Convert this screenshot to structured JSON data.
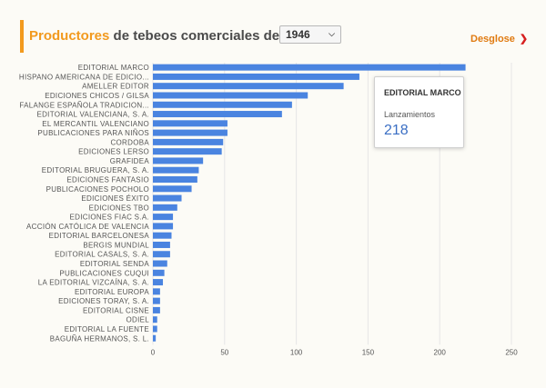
{
  "header": {
    "title_highlight": "Productores",
    "title_rest": "de tebeos comerciales del año",
    "year": "1946",
    "breakdown_label": "Desglose",
    "accent_color": "#f29a1e"
  },
  "tooltip": {
    "name": "EDITORIAL MARCO",
    "label": "Lanzamientos",
    "value": "218"
  },
  "colors": {
    "bar": "#4a84e0",
    "grid": "#e6e6e6",
    "text": "#555555"
  },
  "chart_data": {
    "type": "bar",
    "orientation": "horizontal",
    "xlim": [
      0,
      250
    ],
    "xticks": [
      0,
      50,
      100,
      150,
      200,
      250
    ],
    "grid": true,
    "categories": [
      "EDITORIAL MARCO",
      "HISPANO AMERICANA DE EDICIO...",
      "AMELLER EDITOR",
      "EDICIONES CHICOS / GILSA",
      "FALANGE ESPAÑOLA TRADICION...",
      "EDITORIAL VALENCIANA, S. A.",
      "EL MERCANTIL VALENCIANO",
      "PUBLICACIONES PARA NIÑOS",
      "CORDOBA",
      "EDICIONES LERSO",
      "GRAFIDEA",
      "EDITORIAL BRUGUERA, S. A.",
      "EDICIONES FANTASIO",
      "PUBLICACIONES POCHOLO",
      "EDICIONES ÉXITO",
      "EDICIONES TBO",
      "EDICIONES FIAC S.A.",
      "ACCIÓN CATÓLICA DE VALENCIA",
      "EDITORIAL BARCELONESA",
      "BERGIS MUNDIAL",
      "EDITORIAL CASALS, S. A.",
      "EDITORIAL SENDA",
      "PUBLICACIONES CUQUI",
      "LA EDITORIAL VIZCAÍNA, S. A.",
      "EDITORIAL EUROPA",
      "EDICIONES TORAY, S. A.",
      "EDITORIAL CISNE",
      "ODIEL",
      "EDITORIAL LA FUENTE",
      "BAGUÑA HERMANOS, S. L."
    ],
    "values": [
      218,
      144,
      133,
      108,
      97,
      90,
      52,
      52,
      49,
      48,
      35,
      32,
      31,
      27,
      20,
      17,
      14,
      14,
      13,
      12,
      12,
      10,
      8,
      7,
      5,
      5,
      5,
      3,
      3,
      2
    ]
  }
}
